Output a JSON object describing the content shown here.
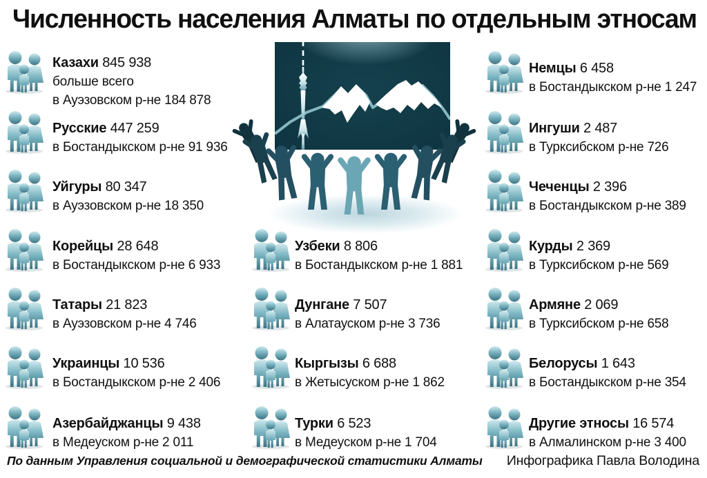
{
  "title": "Численность населения Алматы по отдельным этносам",
  "footer": {
    "source": "По данным Управления социальной и демографической статистики Алматы",
    "credit": "Инфографика Павла Володина"
  },
  "colors": {
    "text": "#101010",
    "panel_dark_teal": "#0e3440",
    "mountain_ridge_teal": "#86b7c0",
    "snow_white": "#ffffff",
    "figure_front_teal": "#6aa6b4",
    "figure_dark_teal": "#12323d",
    "family_icon_teal": "#7db6c2"
  },
  "icons": {
    "family_icon": "three 3d teal figures: man, woman, child",
    "center_illustration": "circle of people holding raised hands around panel with Almaty TV tower and mountains"
  },
  "columns": {
    "left": [
      {
        "name": "Казахи",
        "value": "845 938",
        "note": "больше всего",
        "detail": "в Ауэзовском р-не 184 878"
      },
      {
        "name": "Русские",
        "value": "447 259",
        "detail": "в Бостандыкском р-не 91 936"
      },
      {
        "name": "Уйгуры",
        "value": "80 347",
        "detail": "в Ауэзовском р-не 18 350"
      },
      {
        "name": "Корейцы",
        "value": "28 648",
        "detail": "в Бостандыкском р-не 6 933"
      },
      {
        "name": "Татары",
        "value": "21 823",
        "detail": "в Ауэзовском р-не 4 746"
      },
      {
        "name": "Украинцы",
        "value": "10 536",
        "detail": "в Бостандыкском р-не 2 406"
      },
      {
        "name": "Азербайджанцы",
        "value": "9 438",
        "detail": "в Медеуском р-не 2 011"
      }
    ],
    "middle": [
      {
        "name": "Узбеки",
        "value": "8 806",
        "detail": "в Бостандыкском р-не 1 881"
      },
      {
        "name": "Дунгане",
        "value": "7 507",
        "detail": "в Алатауском р-не 3 736"
      },
      {
        "name": "Кыргызы",
        "value": "6 688",
        "detail": "в Жетысуском р-не 1 862"
      },
      {
        "name": "Турки",
        "value": "6 523",
        "detail": "в Медеуском р-не 1 704"
      }
    ],
    "right": [
      {
        "name": "Немцы",
        "value": "6 458",
        "detail": "в Бостандыкском р-не 1 247"
      },
      {
        "name": "Ингуши",
        "value": "2 487",
        "detail": "в Турксибском р-не 726"
      },
      {
        "name": "Чеченцы",
        "value": "2 396",
        "detail": "в Бостандыкском р-не 389"
      },
      {
        "name": "Курды",
        "value": "2 369",
        "detail": "в Турксибском р-не 569"
      },
      {
        "name": "Армяне",
        "value": "2 069",
        "detail": "в Турксибском р-не 658"
      },
      {
        "name": "Белорусы",
        "value": "1 643",
        "detail": "в Бостандыкском р-не 354"
      },
      {
        "name": "Другие этносы",
        "value": "16 574",
        "detail": "в Алмалинском р-не 3 400"
      }
    ]
  },
  "chart_data": {
    "type": "table",
    "title": "Численность населения Алматы по отдельным этносам",
    "series": [
      {
        "name": "Казахи",
        "total": 845938,
        "note": "больше всего",
        "district_text": "в Ауэзовском р-не",
        "district_value": 184878
      },
      {
        "name": "Русские",
        "total": 447259,
        "district_text": "в Бостандыкском р-не",
        "district_value": 91936
      },
      {
        "name": "Уйгуры",
        "total": 80347,
        "district_text": "в Ауэзовском р-не",
        "district_value": 18350
      },
      {
        "name": "Корейцы",
        "total": 28648,
        "district_text": "в Бостандыкском р-не",
        "district_value": 6933
      },
      {
        "name": "Татары",
        "total": 21823,
        "district_text": "в Ауэзовском р-не",
        "district_value": 4746
      },
      {
        "name": "Украинцы",
        "total": 10536,
        "district_text": "в Бостандыкском р-не",
        "district_value": 2406
      },
      {
        "name": "Азербайджанцы",
        "total": 9438,
        "district_text": "в Медеуском р-не",
        "district_value": 2011
      },
      {
        "name": "Узбеки",
        "total": 8806,
        "district_text": "в Бостандыкском р-не",
        "district_value": 1881
      },
      {
        "name": "Дунгане",
        "total": 7507,
        "district_text": "в Алатауском р-не",
        "district_value": 3736
      },
      {
        "name": "Кыргызы",
        "total": 6688,
        "district_text": "в Жетысуском р-не",
        "district_value": 1862
      },
      {
        "name": "Турки",
        "total": 6523,
        "district_text": "в Медеуском р-не",
        "district_value": 1704
      },
      {
        "name": "Немцы",
        "total": 6458,
        "district_text": "в Бостандыкском р-не",
        "district_value": 1247
      },
      {
        "name": "Ингуши",
        "total": 2487,
        "district_text": "в Турксибском р-не",
        "district_value": 726
      },
      {
        "name": "Чеченцы",
        "total": 2396,
        "district_text": "в Бостандыкском р-не",
        "district_value": 389
      },
      {
        "name": "Курды",
        "total": 2369,
        "district_text": "в Турксибском р-не",
        "district_value": 569
      },
      {
        "name": "Армяне",
        "total": 2069,
        "district_text": "в Турксибском р-не",
        "district_value": 658
      },
      {
        "name": "Белорусы",
        "total": 1643,
        "district_text": "в Бостандыкском р-не",
        "district_value": 354
      },
      {
        "name": "Другие этносы",
        "total": 16574,
        "district_text": "в Алмалинском р-не",
        "district_value": 3400
      }
    ],
    "source": "По данным Управления социальной и демографической статистики Алматы",
    "credit": "Инфографика Павла Володина"
  }
}
